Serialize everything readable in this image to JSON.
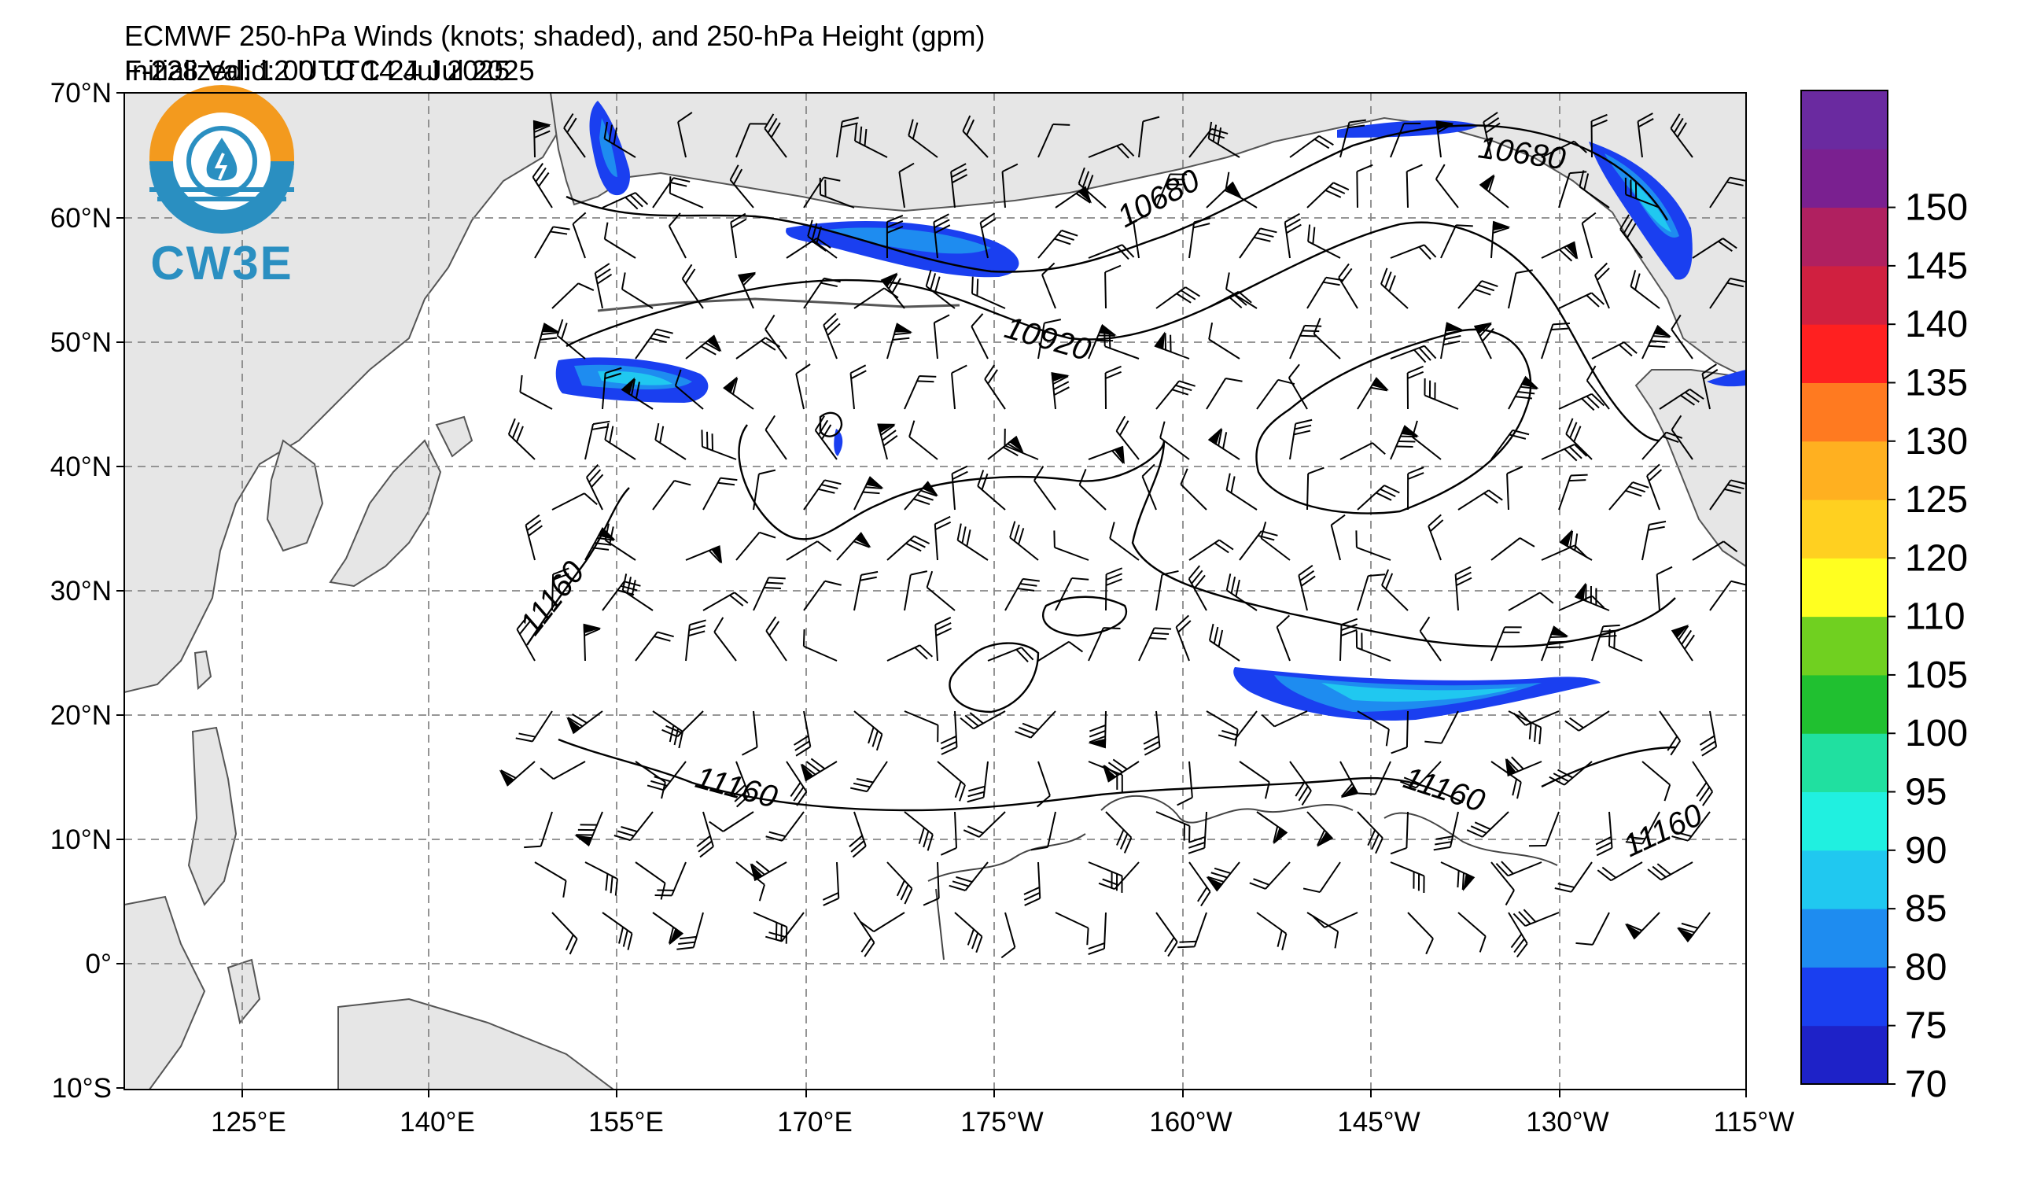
{
  "header": {
    "title_line1": "ECMWF 250-hPa Winds (knots; shaded), and 250-hPa Height (gpm)",
    "title_line2": "Initialized: 12 UTC 14 Jul 2025",
    "valid": "F-228  Valid: 00 UTC 24 Jul 2025"
  },
  "logo": {
    "text": "CW3E",
    "color": "#2a8fc1",
    "ring_color": "#f39a1e"
  },
  "axes": {
    "lat_labels": [
      "70°N",
      "60°N",
      "50°N",
      "40°N",
      "30°N",
      "20°N",
      "10°N",
      "0°",
      "10°S"
    ],
    "lon_labels": [
      "125°E",
      "140°E",
      "155°E",
      "170°E",
      "175°W",
      "160°W",
      "145°W",
      "130°W",
      "115°W"
    ]
  },
  "colorbar": {
    "labels": [
      "70",
      "75",
      "80",
      "85",
      "90",
      "95",
      "100",
      "105",
      "110",
      "120",
      "125",
      "130",
      "135",
      "140",
      "145",
      "150"
    ],
    "colors": [
      "#1e22c8",
      "#1a3ff0",
      "#1e8cf0",
      "#20c8f0",
      "#20f0e0",
      "#20e0a0",
      "#20c030",
      "#70d020",
      "#ffff20",
      "#ffd020",
      "#ffb020",
      "#ff7a20",
      "#ff2020",
      "#d02040",
      "#b02060",
      "#7a2090",
      "#6a2aa0"
    ]
  },
  "contours": {
    "labels": [
      "10680",
      "10680",
      "10920",
      "11160",
      "11160",
      "11160",
      "11160"
    ]
  }
}
